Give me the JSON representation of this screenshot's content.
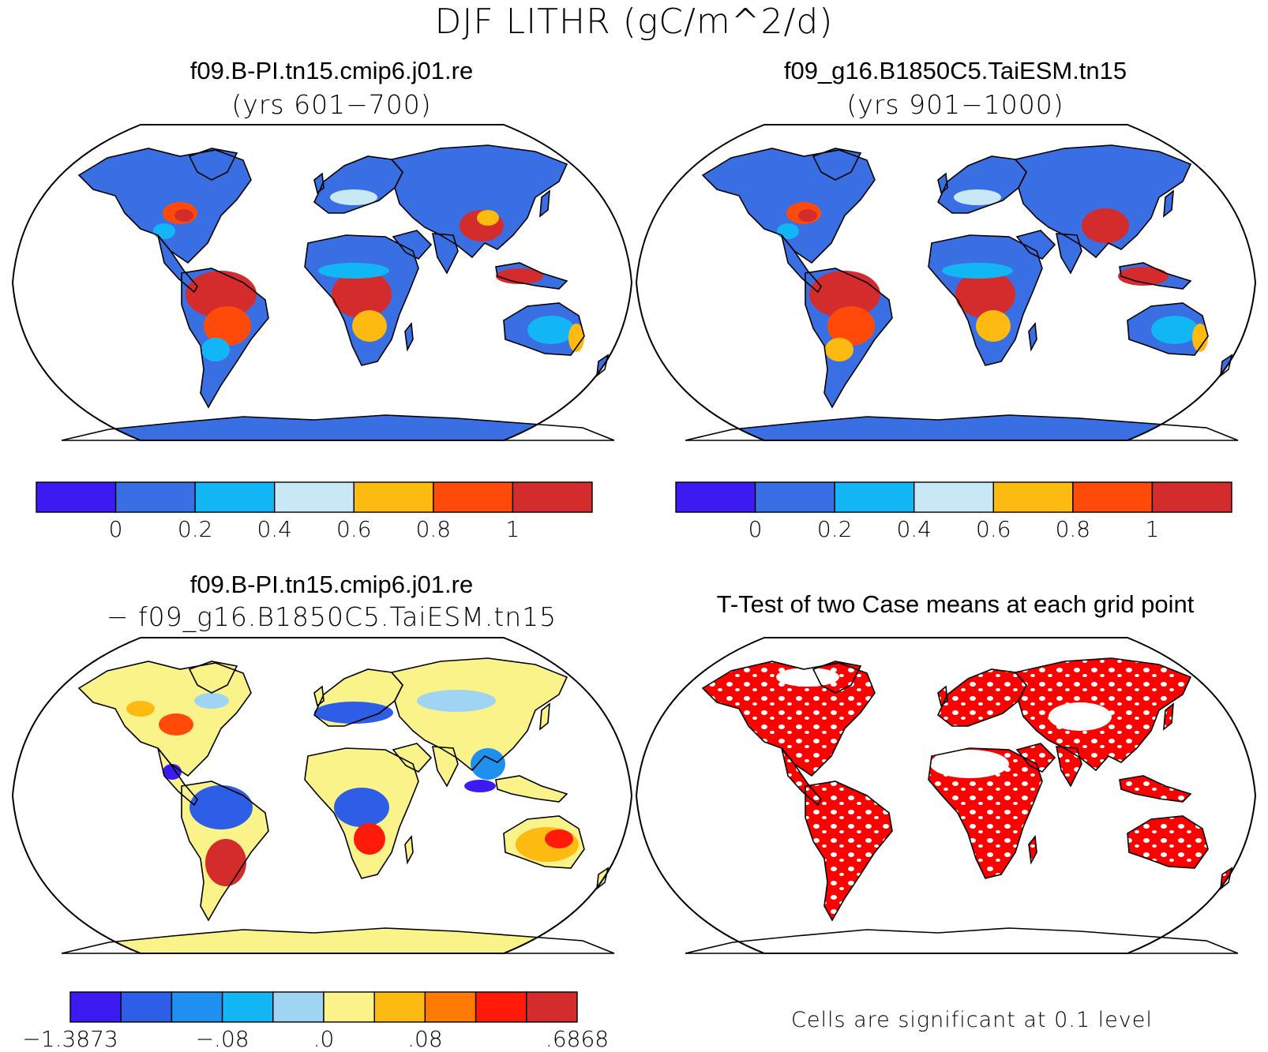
{
  "figure": {
    "title": "DJF LITHR (gC/m^2/d)"
  },
  "panels": [
    {
      "id": "case1",
      "title": "f09.B-PI.tn15.cmip6.j01.re",
      "subtitle": "(yrs 601−700)",
      "colorbar": {
        "colors": [
          "#3b1bf2",
          "#3a6fe3",
          "#12b6f5",
          "#c8e8f6",
          "#fdbb12",
          "#ff4a0a",
          "#d42c2c"
        ],
        "ticks": [
          "0",
          "0.2",
          "0.4",
          "0.6",
          "0.8",
          "1"
        ]
      }
    },
    {
      "id": "case2",
      "title": "f09_g16.B1850C5.TaiESM.tn15",
      "subtitle": "(yrs 901−1000)",
      "colorbar": {
        "colors": [
          "#3b1bf2",
          "#3a6fe3",
          "#12b6f5",
          "#c8e8f6",
          "#fdbb12",
          "#ff4a0a",
          "#d42c2c"
        ],
        "ticks": [
          "0",
          "0.2",
          "0.4",
          "0.6",
          "0.8",
          "1"
        ]
      }
    },
    {
      "id": "difference",
      "title": "f09.B-PI.tn15.cmip6.j01.re",
      "subtitle": "− f09_g16.B1850C5.TaiESM.tn15",
      "colorbar": {
        "colors": [
          "#3b1bf2",
          "#2f5ee6",
          "#1f8ff0",
          "#12b6f5",
          "#9fd4f2",
          "#faf38a",
          "#fdbb12",
          "#ff7b06",
          "#ff1a0a",
          "#d42c2c"
        ],
        "ticks": [
          "−1.3873",
          "−.08",
          ".0",
          ".08",
          ".6868"
        ]
      }
    },
    {
      "id": "ttest",
      "title": "T-Test of two Case means at each grid point",
      "note": "Cells are significant at 0.1 level",
      "significant_color": "#ff0000"
    }
  ],
  "colors": {
    "ocean": "#ffffff",
    "coastline": "#000000",
    "land_base_case": "#3a6fe3",
    "land_base_diff": "#faf38a"
  }
}
